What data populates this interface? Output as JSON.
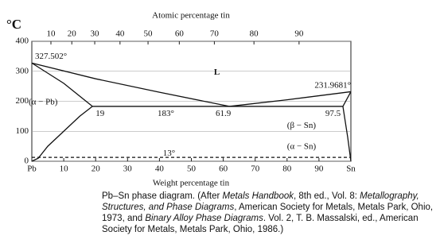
{
  "chart_data": {
    "type": "line",
    "title": "Pb–Sn phase diagram.",
    "x_label": "Weight percentage tin",
    "x2_label": "Atomic percentage tin",
    "y_label": "°C",
    "xlim": [
      0,
      100
    ],
    "xticks": [
      {
        "value": 0,
        "label": "Pb"
      },
      10,
      20,
      30,
      40,
      50,
      60,
      70,
      80,
      90,
      {
        "value": 100,
        "label": "Sn"
      }
    ],
    "x2ticks": [
      10,
      20,
      30,
      40,
      50,
      60,
      70,
      80,
      90
    ],
    "ylim": [
      0,
      400
    ],
    "yticks": [
      0,
      100,
      200,
      300,
      400
    ],
    "grid": true,
    "series": [
      {
        "color": "#111111",
        "x": [
          0,
          20,
          40,
          61.9
        ],
        "values": [
          327.502,
          275,
          230,
          183
        ]
      },
      {
        "color": "#111111",
        "x": [
          61.9,
          80,
          100
        ],
        "values": [
          183,
          205,
          231.9681
        ]
      },
      {
        "color": "#111111",
        "x": [
          0,
          10,
          19
        ],
        "values": [
          327.502,
          260,
          183
        ]
      },
      {
        "color": "#111111",
        "x": [
          19,
          97.5
        ],
        "values": [
          183,
          183
        ]
      },
      {
        "color": "#111111",
        "x": [
          19,
          15,
          10,
          5,
          2,
          0
        ],
        "values": [
          183,
          150,
          100,
          50,
          10,
          0
        ]
      },
      {
        "color": "#111111",
        "x": [
          97.5,
          100
        ],
        "values": [
          183,
          231.9681
        ]
      },
      {
        "color": "#111111",
        "x": [
          97.5,
          99,
          100
        ],
        "values": [
          183,
          80,
          0
        ]
      },
      {
        "color": "#111111",
        "x": [
          0,
          100
        ],
        "values": [
          13,
          13
        ],
        "dashed": true
      }
    ],
    "annotations": [
      "327.502°",
      "L",
      "231.9681°",
      "(α − Pb)",
      "19",
      "183°",
      "61.9",
      "97.5",
      "(β − Sn)",
      "(α − Sn)",
      "13°"
    ],
    "caption": [
      "Pb–Sn phase diagram. (After ",
      "Metals Handbook",
      ", 8th ed., Vol. 8: ",
      "Metallography, Structures, and Phase Diagrams",
      ", American Society for Metals, Metals Park, Ohio, 1973, and ",
      "Binary Alloy Phase Diagrams",
      ". Vol. 2, T. B. Massalski, ed., American Society for Metals, Metals Park, Ohio, 1986.)"
    ]
  }
}
